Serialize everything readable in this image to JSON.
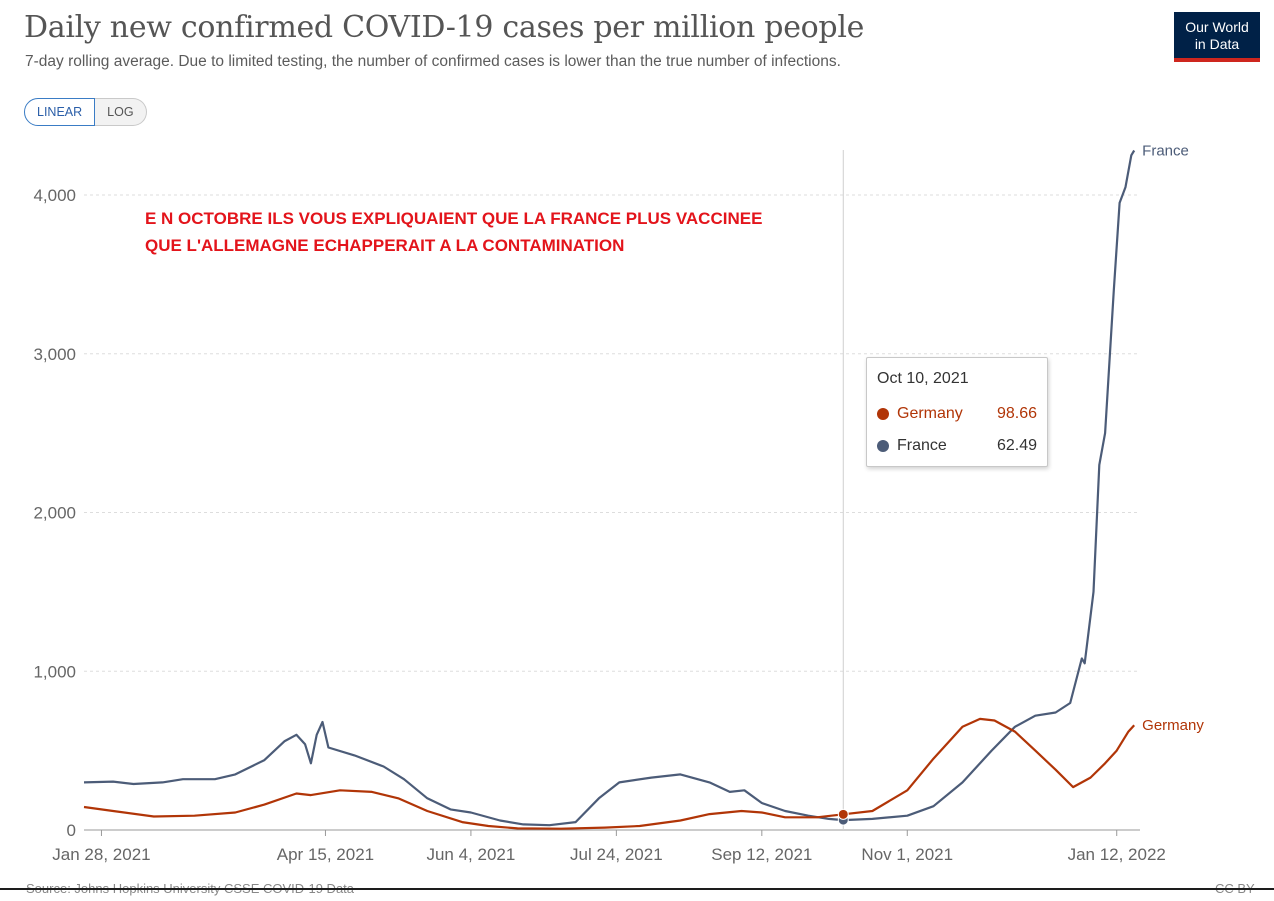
{
  "header": {
    "title": "Daily new confirmed COVID-19 cases per million people",
    "subtitle": "7-day rolling average. Due to limited testing, the number of confirmed cases is lower than the true number of infections.",
    "logo_line1": "Our World",
    "logo_line2": "in Data"
  },
  "scale_toggle": {
    "linear_label": "LINEAR",
    "log_label": "LOG",
    "selected": "LINEAR"
  },
  "annotation": {
    "line1": "E N OCTOBRE ILS VOUS EXPLIQUAIENT QUE LA FRANCE PLUS VACCINEE",
    "line2": "QUE L'ALLEMAGNE ECHAPPERAIT A LA CONTAMINATION"
  },
  "tooltip": {
    "date": "Oct 10, 2021",
    "rows": [
      {
        "name": "Germany",
        "value": "98.66"
      },
      {
        "name": "France",
        "value": "62.49"
      }
    ]
  },
  "footer": {
    "source": "Source: Johns Hopkins University CSSE COVID-19 Data",
    "license": "CC BY"
  },
  "colors": {
    "germany": "#b13507",
    "france": "#4c5c78",
    "grid": "#dddddd",
    "axis": "#666666",
    "hover_line": "#d0d0d0"
  },
  "chart_data": {
    "type": "line",
    "title": "Daily new confirmed COVID-19 cases per million people",
    "subtitle": "7-day rolling average. Due to limited testing, the number of confirmed cases is lower than the true number of infections.",
    "xlabel": "",
    "ylabel": "",
    "x_range": [
      "2021-01-22",
      "2022-01-20"
    ],
    "ylim": [
      0,
      4300
    ],
    "yticks": [
      0,
      1000,
      2000,
      3000,
      4000
    ],
    "ytick_labels": [
      "0",
      "1,000",
      "2,000",
      "3,000",
      "4,000"
    ],
    "xticks": [
      "2021-01-28",
      "2021-04-15",
      "2021-06-04",
      "2021-07-24",
      "2021-09-12",
      "2021-11-01",
      "2022-01-12"
    ],
    "xtick_labels": [
      "Jan 28, 2021",
      "Apr 15, 2021",
      "Jun 4, 2021",
      "Jul 24, 2021",
      "Sep 12, 2021",
      "Nov 1, 2021",
      "Jan 12, 2022"
    ],
    "grid": true,
    "legend": "line-end labels",
    "hover_date": "2021-10-10",
    "series": [
      {
        "name": "France",
        "color": "#4c5c78",
        "points": [
          [
            "2021-01-22",
            300
          ],
          [
            "2021-02-01",
            305
          ],
          [
            "2021-02-08",
            290
          ],
          [
            "2021-02-18",
            300
          ],
          [
            "2021-02-25",
            320
          ],
          [
            "2021-03-08",
            320
          ],
          [
            "2021-03-15",
            350
          ],
          [
            "2021-03-25",
            440
          ],
          [
            "2021-04-01",
            560
          ],
          [
            "2021-04-05",
            600
          ],
          [
            "2021-04-08",
            540
          ],
          [
            "2021-04-10",
            420
          ],
          [
            "2021-04-12",
            600
          ],
          [
            "2021-04-14",
            680
          ],
          [
            "2021-04-16",
            520
          ],
          [
            "2021-04-25",
            470
          ],
          [
            "2021-05-05",
            400
          ],
          [
            "2021-05-12",
            320
          ],
          [
            "2021-05-20",
            200
          ],
          [
            "2021-05-28",
            130
          ],
          [
            "2021-06-04",
            110
          ],
          [
            "2021-06-14",
            60
          ],
          [
            "2021-06-22",
            35
          ],
          [
            "2021-07-01",
            30
          ],
          [
            "2021-07-10",
            50
          ],
          [
            "2021-07-18",
            200
          ],
          [
            "2021-07-25",
            300
          ],
          [
            "2021-08-05",
            330
          ],
          [
            "2021-08-15",
            350
          ],
          [
            "2021-08-25",
            300
          ],
          [
            "2021-09-01",
            240
          ],
          [
            "2021-09-06",
            250
          ],
          [
            "2021-09-12",
            170
          ],
          [
            "2021-09-20",
            120
          ],
          [
            "2021-09-28",
            90
          ],
          [
            "2021-10-05",
            70
          ],
          [
            "2021-10-10",
            62.49
          ],
          [
            "2021-10-20",
            70
          ],
          [
            "2021-11-01",
            90
          ],
          [
            "2021-11-10",
            150
          ],
          [
            "2021-11-20",
            300
          ],
          [
            "2021-11-30",
            500
          ],
          [
            "2021-12-08",
            650
          ],
          [
            "2021-12-15",
            720
          ],
          [
            "2021-12-22",
            740
          ],
          [
            "2021-12-27",
            800
          ],
          [
            "2021-12-31",
            1080
          ],
          [
            "2022-01-01",
            1050
          ],
          [
            "2022-01-04",
            1500
          ],
          [
            "2022-01-06",
            2300
          ],
          [
            "2022-01-08",
            2500
          ],
          [
            "2022-01-11",
            3400
          ],
          [
            "2022-01-13",
            3950
          ],
          [
            "2022-01-15",
            4050
          ],
          [
            "2022-01-17",
            4250
          ],
          [
            "2022-01-18",
            4280
          ]
        ]
      },
      {
        "name": "Germany",
        "color": "#b13507",
        "points": [
          [
            "2021-01-22",
            145
          ],
          [
            "2021-02-01",
            120
          ],
          [
            "2021-02-15",
            85
          ],
          [
            "2021-03-01",
            90
          ],
          [
            "2021-03-15",
            110
          ],
          [
            "2021-03-25",
            160
          ],
          [
            "2021-04-05",
            230
          ],
          [
            "2021-04-10",
            220
          ],
          [
            "2021-04-20",
            250
          ],
          [
            "2021-05-01",
            240
          ],
          [
            "2021-05-10",
            200
          ],
          [
            "2021-05-20",
            120
          ],
          [
            "2021-06-01",
            50
          ],
          [
            "2021-06-10",
            25
          ],
          [
            "2021-06-20",
            10
          ],
          [
            "2021-07-05",
            8
          ],
          [
            "2021-07-20",
            15
          ],
          [
            "2021-08-01",
            25
          ],
          [
            "2021-08-15",
            60
          ],
          [
            "2021-08-25",
            100
          ],
          [
            "2021-09-05",
            120
          ],
          [
            "2021-09-12",
            110
          ],
          [
            "2021-09-20",
            80
          ],
          [
            "2021-10-01",
            80
          ],
          [
            "2021-10-10",
            98.66
          ],
          [
            "2021-10-20",
            120
          ],
          [
            "2021-11-01",
            250
          ],
          [
            "2021-11-10",
            450
          ],
          [
            "2021-11-20",
            650
          ],
          [
            "2021-11-26",
            700
          ],
          [
            "2021-12-01",
            690
          ],
          [
            "2021-12-08",
            620
          ],
          [
            "2021-12-15",
            500
          ],
          [
            "2021-12-22",
            380
          ],
          [
            "2021-12-28",
            270
          ],
          [
            "2022-01-03",
            330
          ],
          [
            "2022-01-08",
            420
          ],
          [
            "2022-01-12",
            500
          ],
          [
            "2022-01-16",
            620
          ],
          [
            "2022-01-18",
            660
          ]
        ]
      }
    ]
  }
}
